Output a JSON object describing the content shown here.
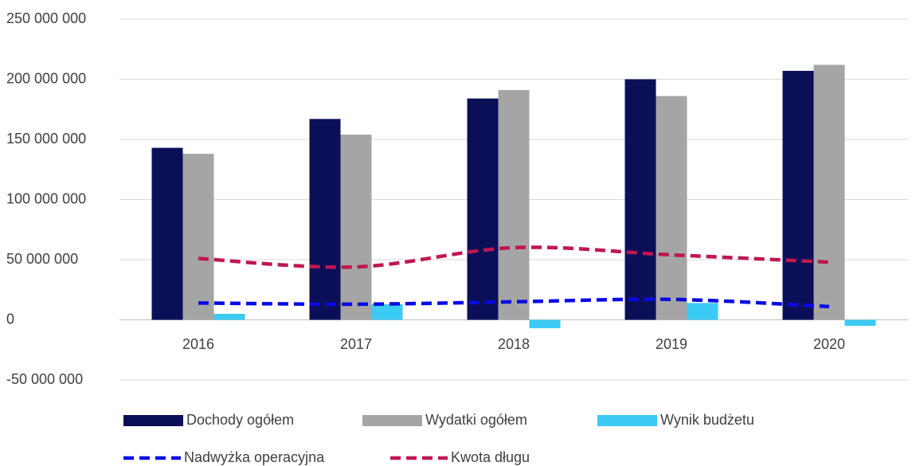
{
  "chart_data": {
    "type": "bar",
    "categories": [
      "2016",
      "2017",
      "2018",
      "2019",
      "2020"
    ],
    "series": [
      {
        "name": "Dochody ogółem",
        "color": "#0b0f57",
        "type": "bar",
        "values": [
          143000000,
          167000000,
          184000000,
          200000000,
          207000000
        ]
      },
      {
        "name": "Wydatki ogółem",
        "color": "#a5a5a5",
        "type": "bar",
        "values": [
          138000000,
          154000000,
          191000000,
          186000000,
          212000000
        ]
      },
      {
        "name": "Wynik budżetu",
        "color": "#3ccbf4",
        "type": "bar",
        "values": [
          5000000,
          13000000,
          -7000000,
          14000000,
          -5000000
        ]
      },
      {
        "name": "Nadwyżka operacyjna",
        "color": "#0a0ae6",
        "type": "line",
        "dashed": true,
        "values": [
          14000000,
          13000000,
          15000000,
          17000000,
          11000000
        ]
      },
      {
        "name": "Kwota długu",
        "color": "#c0174f",
        "type": "line",
        "dashed": true,
        "values": [
          51000000,
          44000000,
          60000000,
          54000000,
          48000000
        ]
      }
    ],
    "ylim": [
      -50000000,
      250000000
    ],
    "yticks": [
      {
        "value": -50000000,
        "label": "-50 000 000"
      },
      0,
      {
        "value": 50000000,
        "label": "50 000 000"
      },
      {
        "value": 100000000,
        "label": "100 000 000"
      },
      {
        "value": 150000000,
        "label": "150 000 000"
      },
      {
        "value": 200000000,
        "label": "200 000 000"
      },
      {
        "value": 250000000,
        "label": "250 000 000"
      }
    ],
    "grid": true,
    "legend": "bottom"
  }
}
